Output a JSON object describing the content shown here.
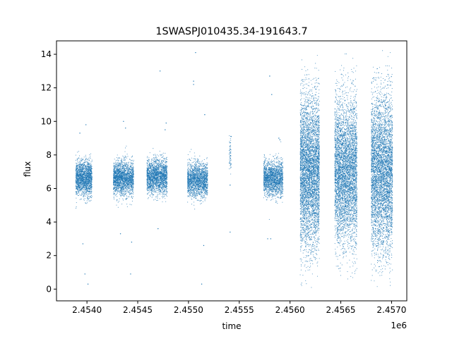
{
  "chart_data": {
    "type": "scatter",
    "title": "1SWASPJ010435.34-191643.7",
    "xlabel": "time",
    "ylabel": "flux",
    "x_offset_label": "1e6",
    "xlim": [
      2453700,
      2457150
    ],
    "ylim": [
      -0.7,
      14.8
    ],
    "x_ticks": [
      2453900,
      2454100,
      2454300,
      2454500,
      2454700,
      2454900,
      2455100,
      2455300,
      2455500,
      2455700,
      2455900,
      2456100,
      2456300,
      2456500,
      2456700,
      2456900,
      2457100
    ],
    "x_ticks_shown": [
      2454000,
      2454500,
      2455000,
      2455500,
      2456000,
      2456500,
      2457000
    ],
    "x_tick_labels": [
      "2.4540",
      "2.4545",
      "2.4550",
      "2.4555",
      "2.4560",
      "2.4565",
      "2.4570"
    ],
    "y_ticks": [
      0,
      2,
      4,
      6,
      8,
      10,
      12,
      14
    ],
    "y_tick_labels": [
      "0",
      "2",
      "4",
      "6",
      "8",
      "10",
      "12",
      "14"
    ],
    "grid": false,
    "marker_color": "#1f77b4",
    "series": [
      {
        "seasons": [
          {
            "x_start": 2453890,
            "x_end": 2454050,
            "y_center": 6.6,
            "y_spread": 0.85,
            "n_points": 1700
          },
          {
            "x_start": 2454260,
            "x_end": 2454460,
            "y_center": 6.6,
            "y_spread": 0.85,
            "n_points": 1900
          },
          {
            "x_start": 2454590,
            "x_end": 2454790,
            "y_center": 6.7,
            "y_spread": 0.85,
            "n_points": 1900
          },
          {
            "x_start": 2454990,
            "x_end": 2455190,
            "y_center": 6.5,
            "y_spread": 0.85,
            "n_points": 1700
          },
          {
            "x_start": 2455400,
            "x_end": 2455420,
            "y_center": 8.0,
            "y_spread": 0.7,
            "n_points": 60
          },
          {
            "x_start": 2455740,
            "x_end": 2455930,
            "y_center": 6.6,
            "y_spread": 0.85,
            "n_points": 1700
          },
          {
            "x_start": 2456100,
            "x_end": 2456290,
            "y_center": 7.0,
            "y_spread": 2.6,
            "n_points": 4500
          },
          {
            "x_start": 2456440,
            "x_end": 2456660,
            "y_center": 7.0,
            "y_spread": 2.5,
            "n_points": 4500
          },
          {
            "x_start": 2456800,
            "x_end": 2457010,
            "y_center": 6.9,
            "y_spread": 2.7,
            "n_points": 4500
          }
        ],
        "outliers": [
          [
            2453990,
            9.8
          ],
          [
            2453930,
            9.3
          ],
          [
            2453960,
            2.7
          ],
          [
            2454010,
            0.3
          ],
          [
            2453980,
            0.9
          ],
          [
            2454360,
            10.0
          ],
          [
            2454440,
            2.8
          ],
          [
            2454430,
            0.9
          ],
          [
            2454330,
            3.3
          ],
          [
            2454380,
            9.6
          ],
          [
            2454720,
            13.0
          ],
          [
            2454700,
            3.6
          ],
          [
            2454780,
            9.9
          ],
          [
            2454770,
            9.5
          ],
          [
            2455070,
            14.1
          ],
          [
            2455050,
            12.4
          ],
          [
            2455050,
            12.2
          ],
          [
            2455150,
            2.6
          ],
          [
            2455130,
            0.3
          ],
          [
            2455160,
            10.4
          ],
          [
            2455420,
            9.1
          ],
          [
            2455410,
            3.4
          ],
          [
            2455410,
            6.2
          ],
          [
            2455820,
            11.6
          ],
          [
            2455800,
            12.7
          ],
          [
            2455780,
            3.0
          ],
          [
            2455810,
            3.0
          ],
          [
            2455890,
            9.0
          ],
          [
            2455900,
            8.9
          ]
        ]
      }
    ]
  }
}
